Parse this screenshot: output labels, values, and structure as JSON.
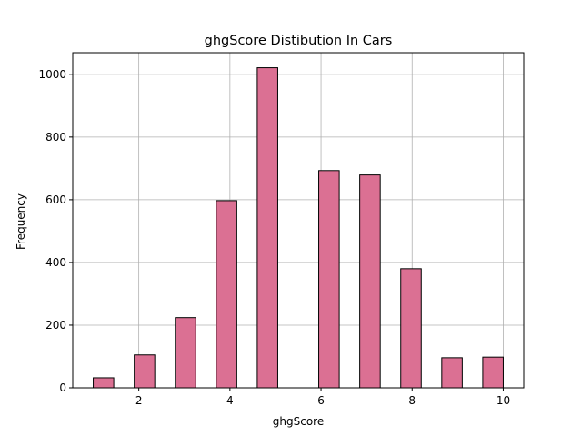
{
  "chart_data": {
    "type": "bar",
    "title": "ghgScore Distibution In Cars",
    "xlabel": "ghgScore",
    "ylabel": "Frequency",
    "xlim": [
      0.55,
      10.45
    ],
    "ylim": [
      0,
      1069
    ],
    "xticks": [
      2,
      4,
      6,
      8,
      10
    ],
    "yticks": [
      0,
      200,
      400,
      600,
      800,
      1000
    ],
    "bin_width": 0.45,
    "bins": [
      {
        "start": 1.0,
        "end": 1.45,
        "value": 32
      },
      {
        "start": 1.45,
        "end": 1.9,
        "value": 0
      },
      {
        "start": 1.9,
        "end": 2.35,
        "value": 105
      },
      {
        "start": 2.35,
        "end": 2.8,
        "value": 0
      },
      {
        "start": 2.8,
        "end": 3.25,
        "value": 224
      },
      {
        "start": 3.25,
        "end": 3.7,
        "value": 0
      },
      {
        "start": 3.7,
        "end": 4.15,
        "value": 597
      },
      {
        "start": 4.15,
        "end": 4.6,
        "value": 0
      },
      {
        "start": 4.6,
        "end": 5.05,
        "value": 1021
      },
      {
        "start": 5.05,
        "end": 5.5,
        "value": 0
      },
      {
        "start": 5.5,
        "end": 5.95,
        "value": 0
      },
      {
        "start": 5.95,
        "end": 6.4,
        "value": 693
      },
      {
        "start": 6.4,
        "end": 6.85,
        "value": 0
      },
      {
        "start": 6.85,
        "end": 7.3,
        "value": 679
      },
      {
        "start": 7.3,
        "end": 7.75,
        "value": 0
      },
      {
        "start": 7.75,
        "end": 8.2,
        "value": 380
      },
      {
        "start": 8.2,
        "end": 8.65,
        "value": 0
      },
      {
        "start": 8.65,
        "end": 9.1,
        "value": 96
      },
      {
        "start": 9.1,
        "end": 9.55,
        "value": 0
      },
      {
        "start": 9.55,
        "end": 10.0,
        "value": 98
      }
    ],
    "grid": true,
    "bar_color": "#db7093",
    "edge_color": "#000000"
  }
}
